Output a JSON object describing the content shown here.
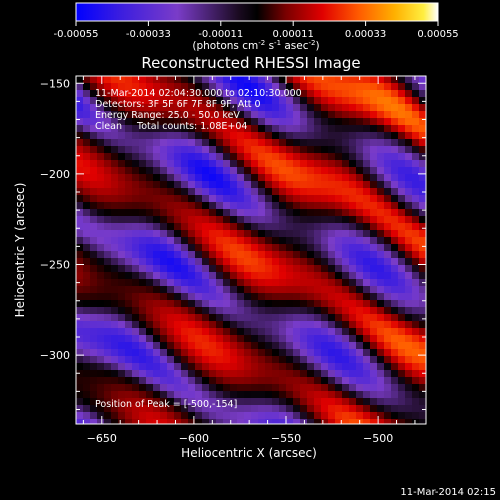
{
  "chart_data": {
    "type": "heatmap",
    "title": "Reconstructed RHESSI Image",
    "xlabel": "Heliocentric X (arcsec)",
    "ylabel": "Heliocentric Y (arcsec)",
    "xlim": [
      -664,
      -474
    ],
    "ylim": [
      -338,
      -146
    ],
    "x_ticks": [
      -650,
      -600,
      -550,
      -500
    ],
    "y_ticks": [
      -150,
      -200,
      -250,
      -300
    ],
    "colorbar": {
      "min": -0.00055,
      "max": 0.00055,
      "ticks": [
        "-0.00055",
        "-0.00033",
        "-0.00011",
        "0.00011",
        "0.00033",
        "0.00055"
      ],
      "unit_text": "(photons cm",
      "unit_sup1": "-2",
      "unit_mid": " s",
      "unit_sup2": "-1",
      "unit_mid2": " asec",
      "unit_sup3": "-2",
      "unit_close": ")"
    },
    "annotations": [
      "11-Mar-2014 02:04:30.000 to 02:10:30.000",
      "Detectors: 3F 5F 6F 7F 8F 9F, Att 0",
      "Energy Range: 25.0 - 50.0 keV",
      "Clean     Total counts: 1.08E+04"
    ],
    "peak_text": "Position of Peak = [-500,-154]",
    "peak": {
      "x": -500,
      "y": -154
    },
    "pattern_note_colors": {
      "low": "#0000ff",
      "neg": "#6a3bd0",
      "zero": "#000000",
      "mid": "#ff3a00",
      "high": "#ffd000",
      "top": "#ffffff"
    }
  },
  "footer_timestamp": "11-Mar-2014 02:15"
}
